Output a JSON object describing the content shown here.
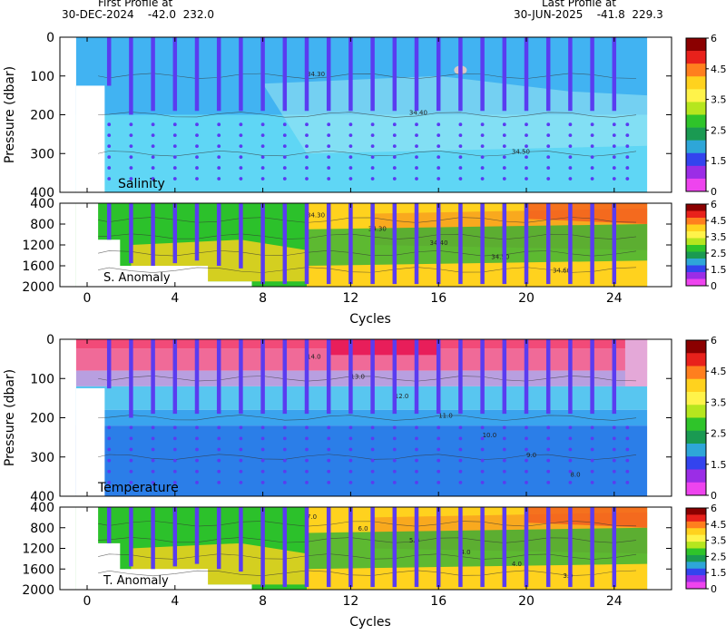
{
  "header": {
    "first_title": "First Profile at",
    "first_info": "30-DEC-2024    -42.0  232.0",
    "last_title": "Last Profile at",
    "last_info": "30-JUN-2025    -41.8  229.3"
  },
  "chart_data": [
    {
      "type": "heatmap",
      "panel": "salinity-upper",
      "label": "Salinity",
      "ylabel": "Pressure (dbar)",
      "xlim": [
        -2,
        27
      ],
      "ylim": [
        400,
        0
      ],
      "x_ticks": [
        "0",
        "4",
        "8",
        "12",
        "16",
        "20",
        "24"
      ],
      "y_ticks": [
        "0",
        "100",
        "200",
        "300",
        "400"
      ],
      "contour_labels": [
        "34.30",
        "34.40",
        "34.50"
      ],
      "colorbar_ticks": [
        "6",
        "4.5",
        "3.5",
        "2.5",
        "1.5",
        "0"
      ]
    },
    {
      "type": "heatmap",
      "panel": "salinity-anomaly",
      "label": "S. Anomaly",
      "xlabel": "Cycles",
      "xlim": [
        -2,
        27
      ],
      "ylim": [
        2000,
        400
      ],
      "x_ticks": [
        "0",
        "4",
        "8",
        "12",
        "16",
        "20",
        "24"
      ],
      "y_ticks": [
        "400",
        "800",
        "1200",
        "1600",
        "2000"
      ],
      "contour_labels": [
        "34.30",
        "34.30",
        "34.40",
        "34.50",
        "34.60"
      ],
      "colorbar_ticks": [
        "6",
        "4.5",
        "3.5",
        "2.5",
        "1.5",
        "0"
      ]
    },
    {
      "type": "heatmap",
      "panel": "temperature-upper",
      "label": "Temperature",
      "ylabel": "Pressure (dbar)",
      "xlim": [
        -2,
        27
      ],
      "ylim": [
        400,
        0
      ],
      "x_ticks": [
        "0",
        "4",
        "8",
        "12",
        "16",
        "20",
        "24"
      ],
      "y_ticks": [
        "0",
        "100",
        "200",
        "300",
        "400"
      ],
      "contour_labels": [
        "14.0",
        "13.0",
        "12.0",
        "11.0",
        "10.0",
        "9.0",
        "8.0"
      ],
      "colorbar_ticks": [
        "6",
        "4.5",
        "3.5",
        "2.5",
        "1.5",
        "0"
      ]
    },
    {
      "type": "heatmap",
      "panel": "temperature-anomaly",
      "label": "T. Anomaly",
      "xlabel": "Cycles",
      "xlim": [
        -2,
        27
      ],
      "ylim": [
        2000,
        400
      ],
      "x_ticks": [
        "0",
        "4",
        "8",
        "12",
        "16",
        "20",
        "24"
      ],
      "y_ticks": [
        "400",
        "800",
        "1200",
        "1600",
        "2000"
      ],
      "contour_labels": [
        "7.0",
        "6.0",
        "5.0",
        "4.0",
        "4.0",
        "3.0"
      ],
      "colorbar_ticks": [
        "6",
        "4.5",
        "3.5",
        "2.5",
        "1.5",
        "0"
      ]
    }
  ],
  "profiles": {
    "cycles": [
      1,
      2,
      3,
      4,
      5,
      6,
      7,
      8,
      9,
      10,
      11,
      12,
      13,
      14,
      15,
      16,
      17,
      18,
      19,
      20,
      21,
      22,
      23,
      24
    ],
    "shallow_max_dbar": [
      125,
      200,
      190,
      190,
      190,
      190,
      190,
      190,
      190,
      190,
      190,
      190,
      190,
      190,
      190,
      190,
      190,
      190,
      190,
      190,
      190,
      190,
      190,
      190
    ],
    "deep_max_dbar": [
      1100,
      1550,
      1600,
      1550,
      1500,
      1600,
      1650,
      1950,
      1950,
      1950,
      1950,
      1950,
      1950,
      1950,
      1950,
      1950,
      1950,
      1950,
      1950,
      1950,
      1950,
      1950,
      1950,
      1950
    ]
  },
  "colorbar_colors": [
    "#8b0000",
    "#e8211b",
    "#ff7f1e",
    "#ffd21e",
    "#fff34a",
    "#b6e61e",
    "#2fc42a",
    "#1a9a52",
    "#2ea6d8",
    "#3344ee",
    "#9b2de6",
    "#ee44ee"
  ]
}
